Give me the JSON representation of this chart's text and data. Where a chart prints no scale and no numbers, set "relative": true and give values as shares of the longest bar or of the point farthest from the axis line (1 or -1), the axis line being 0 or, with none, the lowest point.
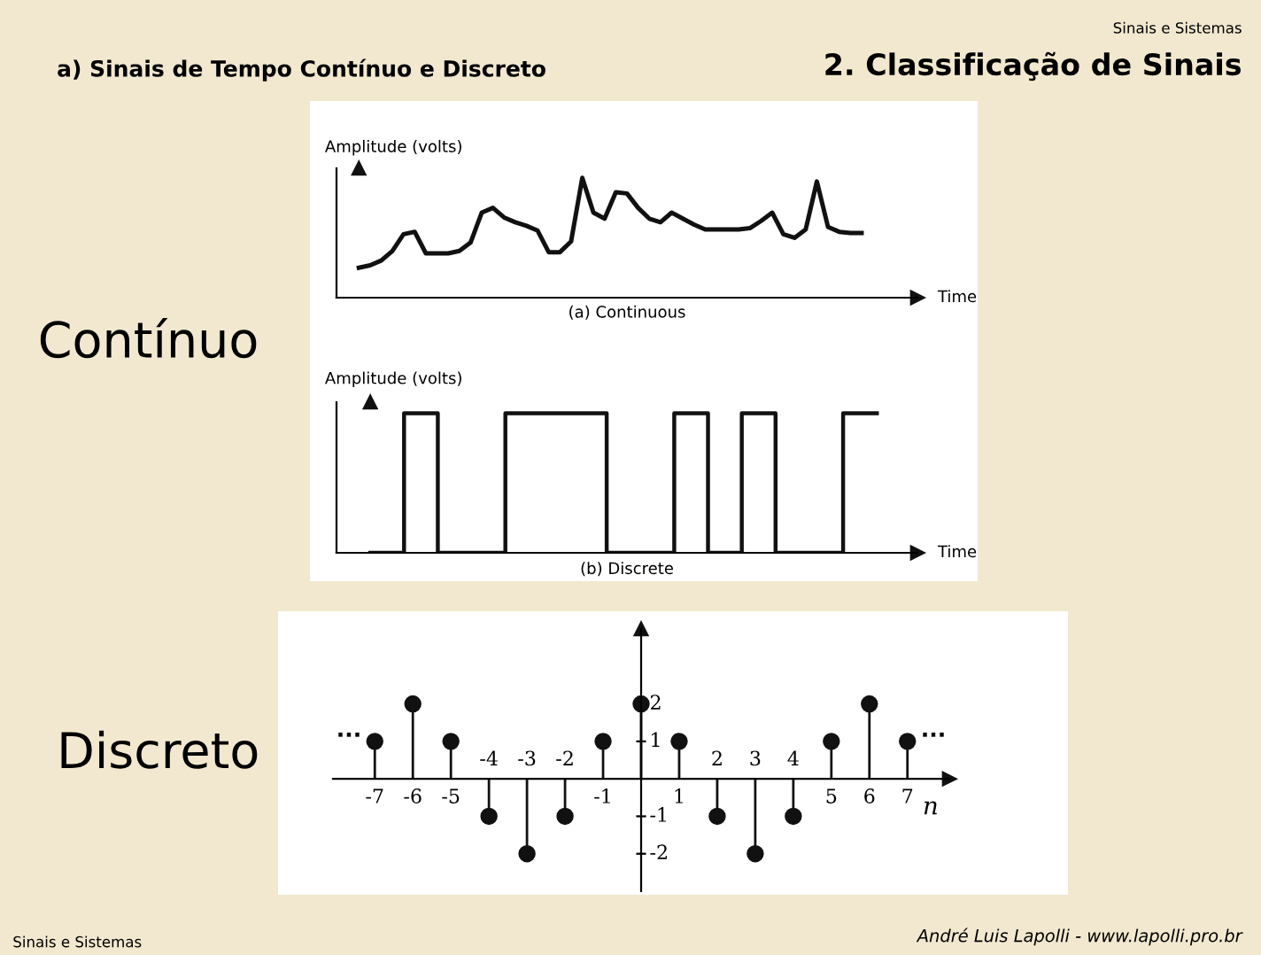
{
  "chart_data": [
    {
      "type": "other",
      "title": "2. Classificação de Sinais",
      "subtitle": "a) Sinais de Tempo Contínuo e Discreto",
      "annotations": [
        "Sinais e Sistemas",
        "Contínuo",
        "Discreto",
        "Sinais e Sistemas",
        "André Luis Lapolli - www.lapolli.pro.br"
      ]
    },
    {
      "type": "line",
      "relative": true,
      "color": "#111111",
      "xlabel": "Time",
      "ylabel": "Amplitude (volts)",
      "annotations": [
        "(a) Continuous"
      ],
      "categories": [
        null,
        null,
        null,
        null,
        null,
        null,
        null,
        null,
        null,
        null,
        null,
        null,
        null,
        null,
        null,
        null,
        null,
        null,
        null,
        null,
        null,
        null,
        null,
        null,
        null,
        null,
        null,
        null,
        null,
        null,
        null,
        null,
        null,
        null,
        null,
        null,
        null,
        null,
        null,
        null,
        null,
        null,
        null,
        null,
        null,
        null
      ],
      "values": [
        0.25,
        0.27,
        0.31,
        0.39,
        0.53,
        0.55,
        0.37,
        0.37,
        0.37,
        0.39,
        0.46,
        0.71,
        0.75,
        0.67,
        0.63,
        0.6,
        0.56,
        0.38,
        0.38,
        0.47,
        1.0,
        0.71,
        0.66,
        0.88,
        0.87,
        0.75,
        0.66,
        0.63,
        0.71,
        0.66,
        0.61,
        0.57,
        0.57,
        0.57,
        0.57,
        0.58,
        0.64,
        0.71,
        0.53,
        0.5,
        0.57,
        0.97,
        0.59,
        0.55,
        0.54,
        0.54
      ]
    },
    {
      "type": "step",
      "relative": true,
      "color": "#111111",
      "xlabel": "Time",
      "ylabel": "Amplitude (volts)",
      "annotations": [
        "(b) Discrete"
      ],
      "categories": [
        null,
        null,
        null,
        null,
        null,
        null,
        null,
        null,
        null,
        null,
        null,
        null,
        null,
        null,
        null,
        null
      ],
      "values": [
        0,
        1,
        0,
        0,
        1,
        1,
        1,
        0,
        0,
        1,
        0,
        1,
        0,
        0,
        1,
        1
      ]
    },
    {
      "type": "lollipop",
      "color": "#111111",
      "marker": "circle",
      "xlabel": "n",
      "annotations": [
        "...",
        "..."
      ],
      "categories": [
        "-7",
        "-6",
        "-5",
        "-4",
        "-3",
        "-2",
        "-1",
        null,
        "1",
        "2",
        "3",
        "4",
        "5",
        "6",
        "7"
      ],
      "values": [
        1,
        2,
        1,
        -1,
        -2,
        -1,
        1,
        2,
        1,
        -1,
        -2,
        -1,
        1,
        2,
        1
      ],
      "ylim": [
        -3,
        4
      ],
      "yticks": [
        {
          "value": -2,
          "label": "-2"
        },
        {
          "value": -1,
          "label": "-1"
        },
        1,
        2
      ]
    }
  ]
}
